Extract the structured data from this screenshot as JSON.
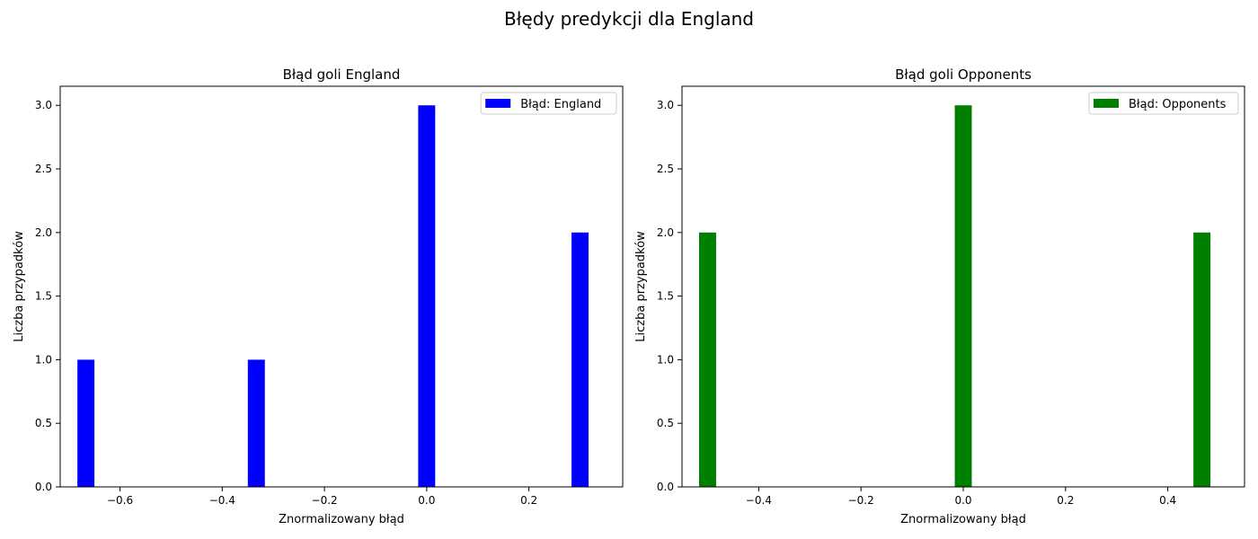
{
  "figure": {
    "suptitle": "Błędy predykcji dla England"
  },
  "chart_data": [
    {
      "type": "bar",
      "title": "Błąd goli England",
      "xlabel": "Znormalizowany błąd",
      "ylabel": "Liczba przypadków",
      "xlim": [
        -0.717,
        0.3835
      ],
      "ylim": [
        0,
        3.15
      ],
      "xticks": [
        -0.6,
        -0.4,
        -0.2,
        0.0,
        0.2
      ],
      "xtick_labels": [
        "−0.6",
        "−0.4",
        "−0.2",
        "0.0",
        "0.2"
      ],
      "yticks": [
        0.0,
        0.5,
        1.0,
        1.5,
        2.0,
        2.5,
        3.0
      ],
      "ytick_labels": [
        "0.0",
        "0.5",
        "1.0",
        "1.5",
        "2.0",
        "2.5",
        "3.0"
      ],
      "bar_width": 0.0333,
      "legend_placement": "top-right",
      "series": [
        {
          "name": "Błąd: England",
          "color": "#0000ff",
          "points": [
            {
              "x": -0.6667,
              "y": 1
            },
            {
              "x": -0.3333,
              "y": 1
            },
            {
              "x": 0.0,
              "y": 3
            },
            {
              "x": 0.3,
              "y": 2
            }
          ]
        }
      ]
    },
    {
      "type": "bar",
      "title": "Błąd goli Opponents",
      "xlabel": "Znormalizowany błąd",
      "ylabel": "Liczba przypadków",
      "xlim": [
        -0.55,
        0.55
      ],
      "ylim": [
        0,
        3.15
      ],
      "xticks": [
        -0.4,
        -0.2,
        0.0,
        0.2,
        0.4
      ],
      "xtick_labels": [
        "−0.4",
        "−0.2",
        "0.0",
        "0.2",
        "0.4"
      ],
      "yticks": [
        0.0,
        0.5,
        1.0,
        1.5,
        2.0,
        2.5,
        3.0
      ],
      "ytick_labels": [
        "0.0",
        "0.5",
        "1.0",
        "1.5",
        "2.0",
        "2.5",
        "3.0"
      ],
      "bar_width": 0.0333,
      "legend_placement": "top-right",
      "series": [
        {
          "name": "Błąd: Opponents",
          "color": "#008000",
          "points": [
            {
              "x": -0.5,
              "y": 2
            },
            {
              "x": 0.0,
              "y": 3
            },
            {
              "x": 0.4667,
              "y": 2
            }
          ]
        }
      ]
    }
  ]
}
